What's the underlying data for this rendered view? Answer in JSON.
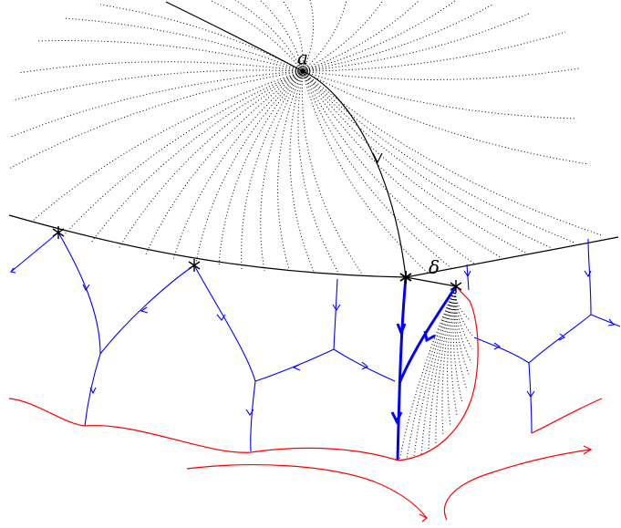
{
  "labels": {
    "a": "a",
    "delta": "δ"
  },
  "colors": {
    "black_curves": "#000000",
    "blue_curves": "#0000ff",
    "red_curves": "#ff0000"
  }
}
